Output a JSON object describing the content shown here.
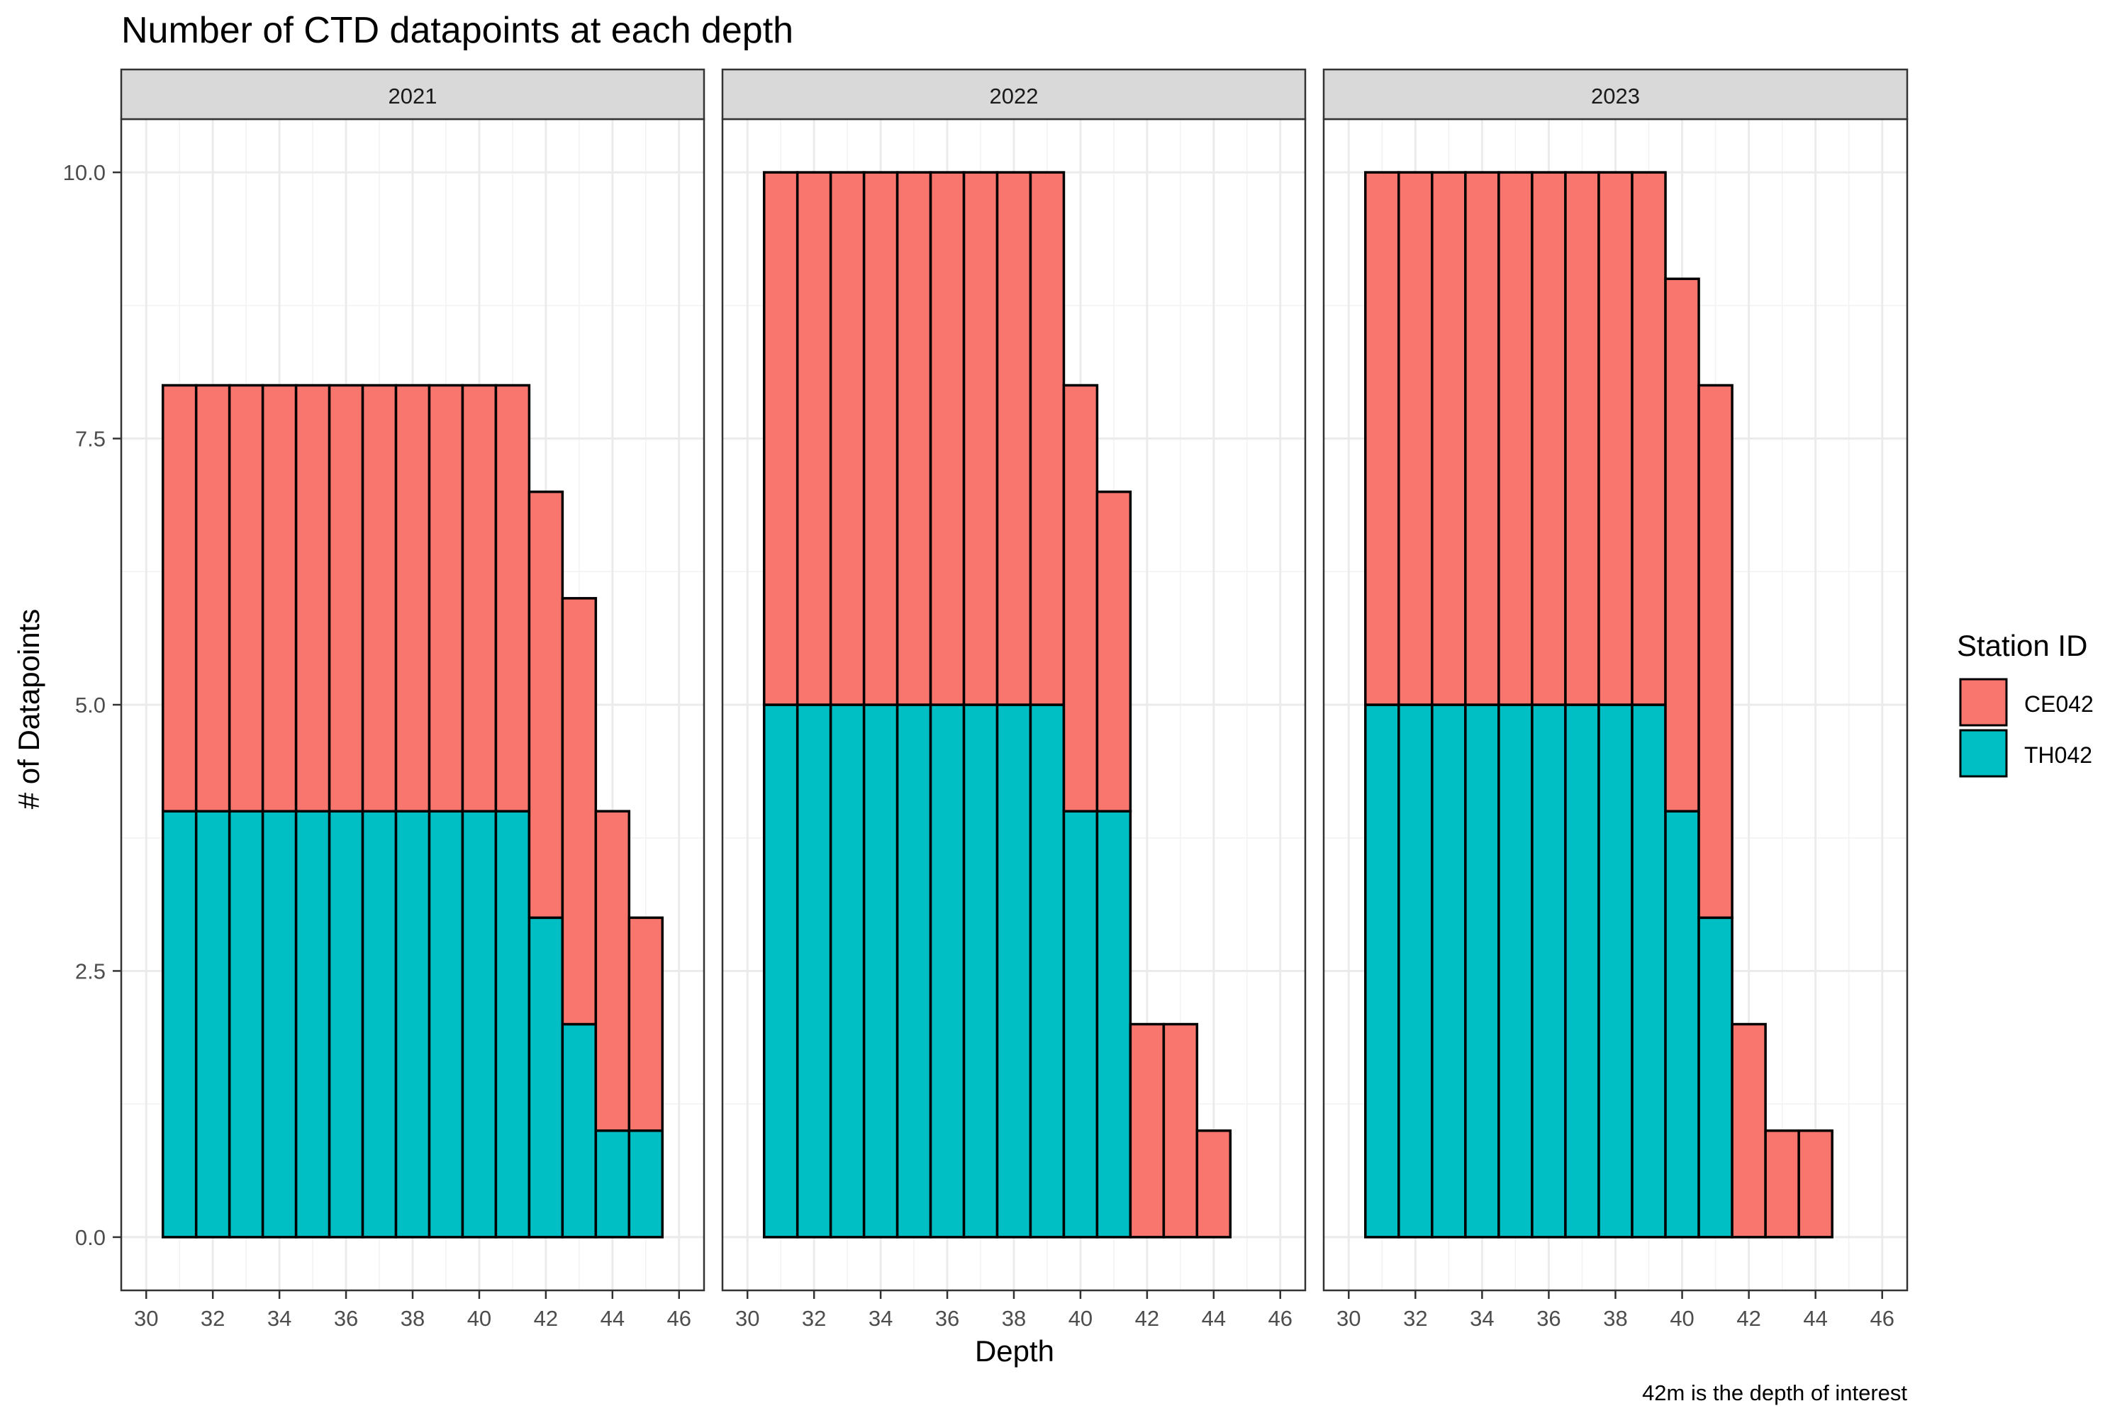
{
  "chart_data": {
    "type": "bar",
    "stacked": true,
    "title": "Number of CTD datapoints at each depth",
    "xlabel": "Depth",
    "ylabel": "# of Datapoints",
    "caption": "42m is the depth of interest",
    "legend": {
      "title": "Station ID",
      "position": "right",
      "entries": [
        {
          "name": "CE042",
          "color": "#F8766D"
        },
        {
          "name": "TH042",
          "color": "#00BFC4"
        }
      ]
    },
    "xlim": [
      29.25,
      46.75
    ],
    "ylim": [
      -0.5,
      10.5
    ],
    "xticks": [
      30,
      32,
      34,
      36,
      38,
      40,
      42,
      44,
      46
    ],
    "yticks": [
      0,
      2.5,
      5,
      7.5,
      10
    ],
    "ytick_labels": [
      "0.0",
      "2.5",
      "5.0",
      "7.5",
      "10.0"
    ],
    "grid": true,
    "bar_width": 1,
    "facets": [
      {
        "label": "2021",
        "x": [
          31,
          32,
          33,
          34,
          35,
          36,
          37,
          38,
          39,
          40,
          41,
          42,
          43,
          44,
          45
        ],
        "series": [
          {
            "name": "TH042",
            "values": [
              4,
              4,
              4,
              4,
              4,
              4,
              4,
              4,
              4,
              4,
              4,
              3,
              2,
              1,
              1
            ]
          },
          {
            "name": "CE042",
            "values": [
              4,
              4,
              4,
              4,
              4,
              4,
              4,
              4,
              4,
              4,
              4,
              4,
              4,
              3,
              2
            ]
          }
        ]
      },
      {
        "label": "2022",
        "x": [
          31,
          32,
          33,
          34,
          35,
          36,
          37,
          38,
          39,
          40,
          41,
          42,
          43,
          44,
          45
        ],
        "series": [
          {
            "name": "TH042",
            "values": [
              5,
              5,
              5,
              5,
              5,
              5,
              5,
              5,
              5,
              4,
              4,
              0,
              0,
              0,
              0
            ]
          },
          {
            "name": "CE042",
            "values": [
              5,
              5,
              5,
              5,
              5,
              5,
              5,
              5,
              5,
              4,
              3,
              2,
              2,
              1,
              0
            ]
          }
        ]
      },
      {
        "label": "2023",
        "x": [
          31,
          32,
          33,
          34,
          35,
          36,
          37,
          38,
          39,
          40,
          41,
          42,
          43,
          44,
          45
        ],
        "series": [
          {
            "name": "TH042",
            "values": [
              5,
              5,
              5,
              5,
              5,
              5,
              5,
              5,
              5,
              4,
              3,
              0,
              0,
              0,
              0
            ]
          },
          {
            "name": "CE042",
            "values": [
              5,
              5,
              5,
              5,
              5,
              5,
              5,
              5,
              5,
              5,
              5,
              2,
              1,
              1,
              0
            ]
          }
        ]
      }
    ]
  }
}
